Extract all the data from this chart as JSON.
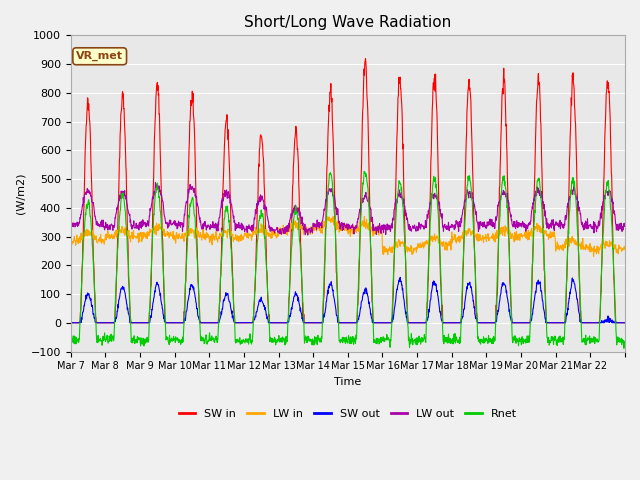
{
  "title": "Short/Long Wave Radiation",
  "xlabel": "Time",
  "ylabel": "(W/m2)",
  "ylim": [
    -100,
    1000
  ],
  "annotation_text": "VR_met",
  "fig_bg_color": "#f0f0f0",
  "plot_bg_color": "#e8e8e8",
  "tick_labels": [
    "Mar 7",
    "Mar 8",
    "Mar 9",
    "Mar 10",
    "Mar 11",
    "Mar 12",
    "Mar 13",
    "Mar 14",
    "Mar 15",
    "Mar 16",
    "Mar 17",
    "Mar 18",
    "Mar 19",
    "Mar 20",
    "Mar 21",
    "Mar 22"
  ],
  "series": {
    "SW_in": {
      "color": "#ff0000",
      "label": "SW in"
    },
    "LW_in": {
      "color": "#ffa500",
      "label": "LW in"
    },
    "SW_out": {
      "color": "#0000ff",
      "label": "SW out"
    },
    "LW_out": {
      "color": "#aa00aa",
      "label": "LW out"
    },
    "Rnet": {
      "color": "#00cc00",
      "label": "Rnet"
    }
  },
  "legend_colors": [
    "#ff0000",
    "#ffa500",
    "#0000ff",
    "#aa00aa",
    "#00cc00"
  ],
  "legend_labels": [
    "SW in",
    "LW in",
    "SW out",
    "LW out",
    "Rnet"
  ],
  "n_days": 16,
  "pts_per_day": 96,
  "day_peaks_SW_in": [
    770,
    800,
    820,
    790,
    710,
    660,
    660,
    805,
    910,
    855,
    860,
    840,
    845,
    845,
    845,
    845
  ],
  "day_peaks_SW_out": [
    100,
    125,
    135,
    130,
    100,
    80,
    100,
    135,
    115,
    150,
    140,
    140,
    140,
    145,
    145,
    10
  ],
  "lw_in_base": [
    285,
    300,
    305,
    300,
    295,
    305,
    320,
    330,
    320,
    255,
    270,
    295,
    300,
    305,
    265,
    255
  ],
  "lw_in_daybump": [
    30,
    20,
    25,
    20,
    20,
    20,
    25,
    30,
    25,
    20,
    25,
    25,
    25,
    25,
    20,
    20
  ],
  "lw_out_base": [
    340,
    335,
    345,
    340,
    335,
    325,
    320,
    340,
    330,
    330,
    335,
    340,
    340,
    340,
    340,
    335
  ],
  "lw_out_daypeak": [
    460,
    450,
    475,
    475,
    455,
    430,
    395,
    460,
    440,
    445,
    445,
    455,
    455,
    460,
    460,
    460
  ],
  "rnet_daypeak": [
    420,
    440,
    470,
    430,
    400,
    380,
    390,
    520,
    530,
    490,
    500,
    505,
    505,
    500,
    500,
    485
  ],
  "rnet_night": -60,
  "lw_noise": 8,
  "sw_noise": 15
}
